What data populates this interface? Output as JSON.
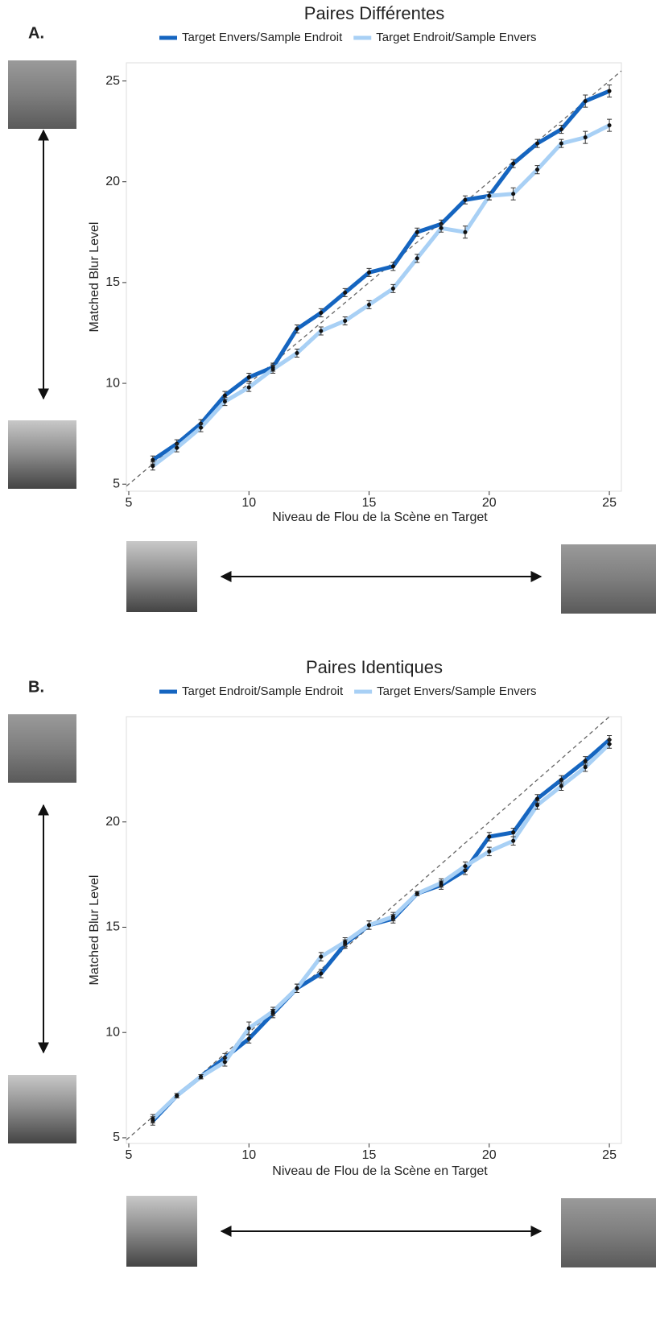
{
  "chart_data": [
    {
      "type": "line",
      "panel": "A.",
      "title": "Paires Différentes",
      "xlabel": "Niveau de Flou de la Scène en Target",
      "ylabel": "Matched Blur Level",
      "x": [
        6,
        7,
        8,
        9,
        10,
        11,
        12,
        13,
        14,
        15,
        16,
        17,
        18,
        19,
        20,
        21,
        22,
        23,
        24,
        25
      ],
      "series": [
        {
          "name": "Target Envers/Sample Endroit",
          "color": "#1565c0",
          "values": [
            6.2,
            7.0,
            8.0,
            9.4,
            10.3,
            10.8,
            12.7,
            13.5,
            14.5,
            15.5,
            15.8,
            17.5,
            17.9,
            19.1,
            19.3,
            20.9,
            21.9,
            22.6,
            24.0,
            24.5
          ],
          "errors": [
            0.2,
            0.2,
            0.2,
            0.2,
            0.2,
            0.2,
            0.2,
            0.2,
            0.2,
            0.2,
            0.2,
            0.2,
            0.2,
            0.2,
            0.2,
            0.2,
            0.2,
            0.2,
            0.3,
            0.3
          ]
        },
        {
          "name": "Target Endroit/Sample Envers",
          "color": "#a8d0f5",
          "values": [
            5.9,
            6.8,
            7.8,
            9.1,
            9.8,
            10.7,
            11.5,
            12.6,
            13.1,
            13.9,
            14.7,
            16.2,
            17.7,
            17.5,
            19.3,
            19.4,
            20.6,
            21.9,
            22.2,
            22.8
          ],
          "errors": [
            0.2,
            0.2,
            0.2,
            0.2,
            0.2,
            0.2,
            0.2,
            0.2,
            0.2,
            0.2,
            0.2,
            0.2,
            0.2,
            0.3,
            0.2,
            0.3,
            0.2,
            0.2,
            0.3,
            0.3
          ]
        }
      ],
      "xlim": [
        4.9,
        25.5
      ],
      "ylim": [
        4.65,
        25.9
      ],
      "xticks": [
        5,
        10,
        15,
        20,
        25
      ],
      "yticks": [
        5,
        10,
        15,
        20,
        25
      ]
    },
    {
      "type": "line",
      "panel": "B.",
      "title": "Paires Identiques",
      "xlabel": "Niveau de Flou de la Scène en Target",
      "ylabel": "Matched Blur Level",
      "x": [
        6,
        7,
        8,
        9,
        10,
        11,
        12,
        13,
        14,
        15,
        16,
        17,
        18,
        19,
        20,
        21,
        22,
        23,
        24,
        25
      ],
      "series": [
        {
          "name": "Target Endroit/Sample Endroit",
          "color": "#1565c0",
          "values": [
            5.8,
            7.0,
            7.9,
            8.8,
            9.7,
            10.9,
            12.1,
            12.8,
            14.2,
            15.1,
            15.4,
            16.6,
            17.0,
            17.7,
            19.3,
            19.5,
            21.1,
            22.0,
            22.9,
            23.9
          ],
          "errors": [
            0.2,
            0.1,
            0.1,
            0.2,
            0.2,
            0.2,
            0.2,
            0.2,
            0.2,
            0.2,
            0.2,
            0.1,
            0.2,
            0.2,
            0.2,
            0.2,
            0.2,
            0.2,
            0.2,
            0.2
          ]
        },
        {
          "name": "Target Envers/Sample Envers",
          "color": "#a8d0f5",
          "values": [
            5.9,
            7.0,
            7.9,
            8.6,
            10.2,
            11.0,
            12.1,
            13.6,
            14.3,
            15.1,
            15.5,
            16.6,
            17.1,
            17.9,
            18.6,
            19.1,
            20.8,
            21.7,
            22.6,
            23.7
          ],
          "errors": [
            0.2,
            0.1,
            0.1,
            0.2,
            0.3,
            0.2,
            0.2,
            0.2,
            0.2,
            0.2,
            0.2,
            0.1,
            0.2,
            0.2,
            0.2,
            0.2,
            0.2,
            0.2,
            0.2,
            0.2
          ]
        }
      ],
      "xlim": [
        4.9,
        25.5
      ],
      "ylim": [
        4.73,
        25
      ],
      "xticks": [
        5,
        10,
        15,
        20,
        25
      ],
      "yticks": [
        5,
        10,
        15,
        20
      ]
    }
  ]
}
